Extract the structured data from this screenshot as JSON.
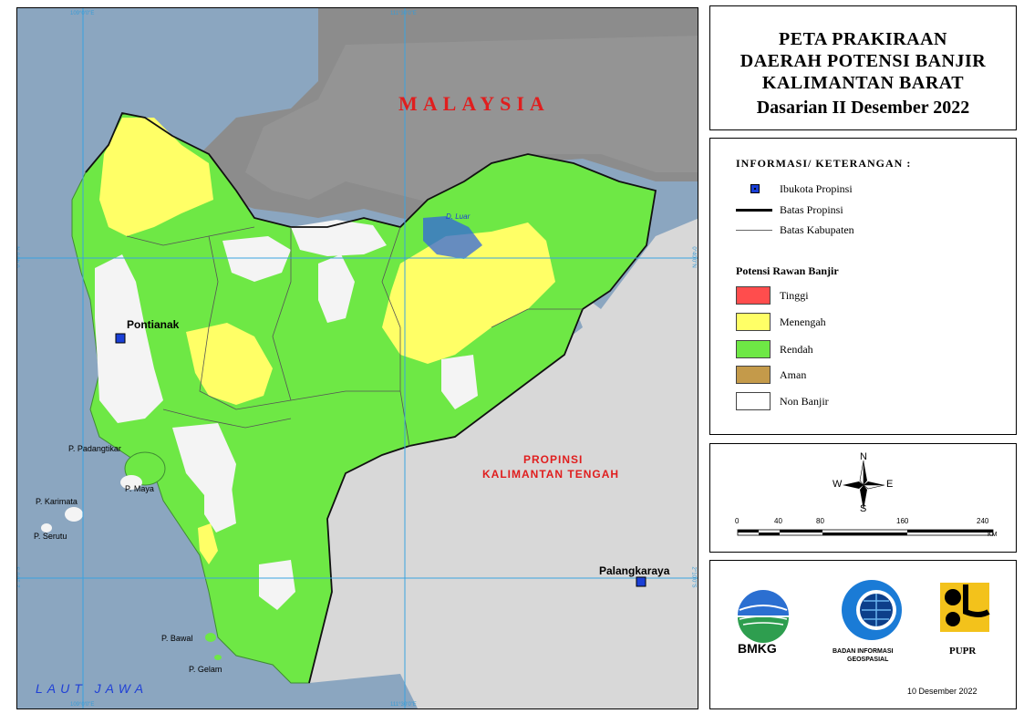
{
  "title": {
    "line1": "PETA PRAKIRAAN",
    "line2": "DAERAH POTENSI BANJIR",
    "line3": "KALIMANTAN BARAT",
    "period": "Dasarian II Desember 2022"
  },
  "legend": {
    "heading": "INFORMASI/ KETERANGAN :",
    "capital": "Ibukota Propinsi",
    "prov_boundary": "Batas Propinsi",
    "kab_boundary": "Batas Kabupaten",
    "risk_heading": "Potensi Rawan Banjir",
    "levels": [
      {
        "label": "Tinggi",
        "color": "#ff4d4d"
      },
      {
        "label": "Menengah",
        "color": "#ffff66"
      },
      {
        "label": "Rendah",
        "color": "#6ee845"
      },
      {
        "label": "Aman",
        "color": "#c49a4a"
      },
      {
        "label": "Non Banjir",
        "color": "#ffffff"
      }
    ]
  },
  "map": {
    "malaysia": "MALAYSIA",
    "prov_kalteng_1": "PROPINSI",
    "prov_kalteng_2": "KALIMANTAN TENGAH",
    "sea": "LAUT JAWA",
    "pontianak": "Pontianak",
    "palangkaraya": "Palangkaraya",
    "islands": [
      "P. Padangtikar",
      "P. Maya",
      "P. Karimata",
      "P. Serutu",
      "P. Bawal",
      "P. Gelam"
    ],
    "lake": "D. Luar",
    "coords": {
      "lon1": "109°0'0\"E",
      "lon2": "111°30'0\"E",
      "lat1": "0°40'0\"N",
      "lat2": "2°10'0\"S"
    },
    "colors": {
      "sea": "#8ba6c0",
      "land_outside": "#d8d8d8",
      "grid": "#3aa3e0"
    }
  },
  "compass": {
    "n": "N",
    "s": "S",
    "e": "E",
    "w": "W"
  },
  "scale": {
    "ticks": [
      "0",
      "40",
      "80",
      "160",
      "240"
    ],
    "unit": "KM"
  },
  "logos": {
    "bmkg": "BMKG",
    "big_line1": "BADAN INFORMASI",
    "big_line2": "GEOSPASIAL",
    "pupr": "PUPR"
  },
  "date": "10 Desember 2022"
}
